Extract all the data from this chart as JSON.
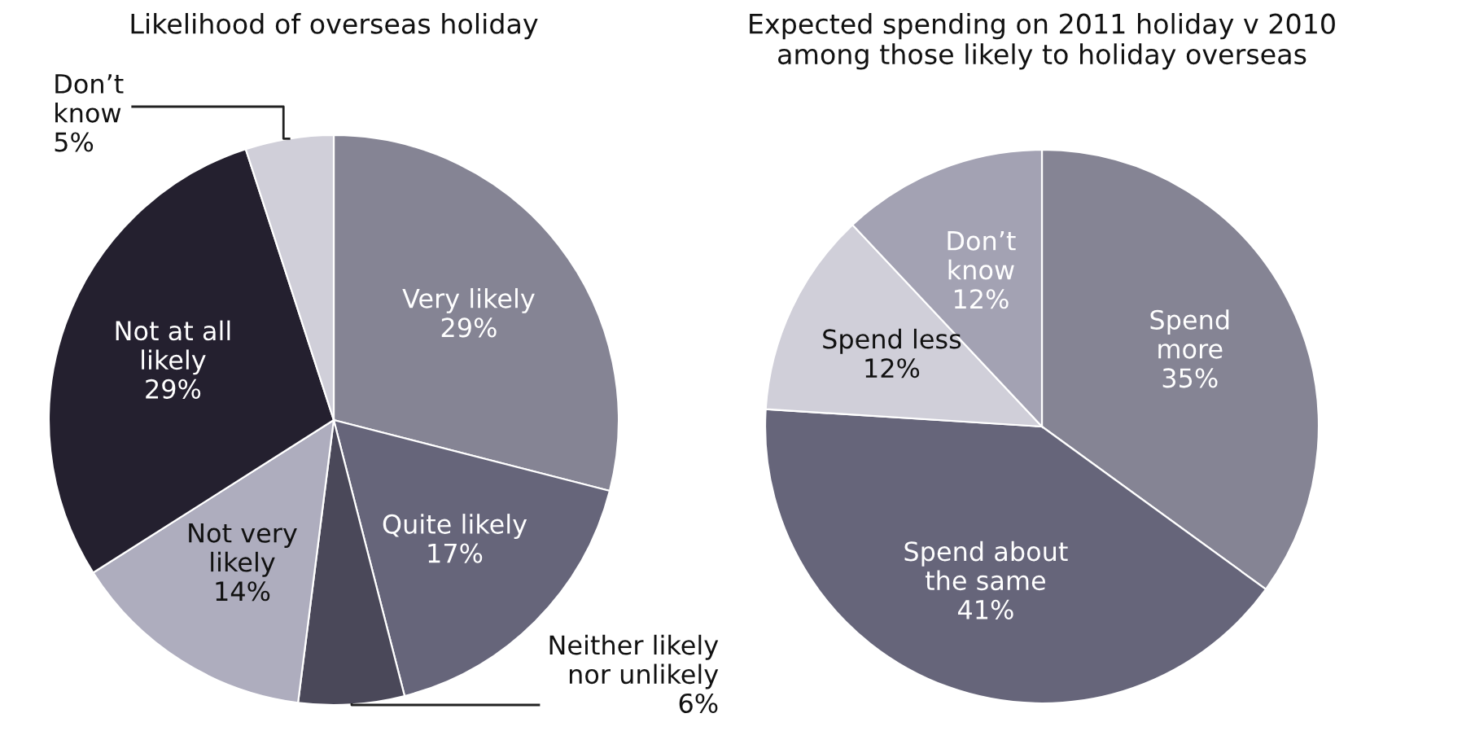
{
  "chart_data": [
    {
      "type": "pie",
      "title": "Likelihood of overseas holiday",
      "categories": [
        "Very likely",
        "Quite likely",
        "Neither likely\nnor unlikely",
        "Not very\nlikely",
        "Not at all\nlikely",
        "Don’t\nknow"
      ],
      "values": [
        29,
        17,
        6,
        14,
        29,
        5
      ],
      "value_labels": [
        "29%",
        "17%",
        "6%",
        "14%",
        "29%",
        "5%"
      ],
      "colors": [
        "#858494",
        "#66657a",
        "#4a4859",
        "#aeadbe",
        "#24202f",
        "#d0cfd9"
      ]
    },
    {
      "type": "pie",
      "title": "Expected spending on 2011 holiday v 2010\namong those likely to holiday overseas",
      "categories": [
        "Spend\nmore",
        "Spend about\nthe same",
        "Spend less",
        "Don’t\nknow"
      ],
      "values": [
        35,
        41,
        12,
        12
      ],
      "value_labels": [
        "35%",
        "41%",
        "12%",
        "12%"
      ],
      "colors": [
        "#858494",
        "#66657a",
        "#d0cfd9",
        "#a3a2b3"
      ]
    }
  ]
}
